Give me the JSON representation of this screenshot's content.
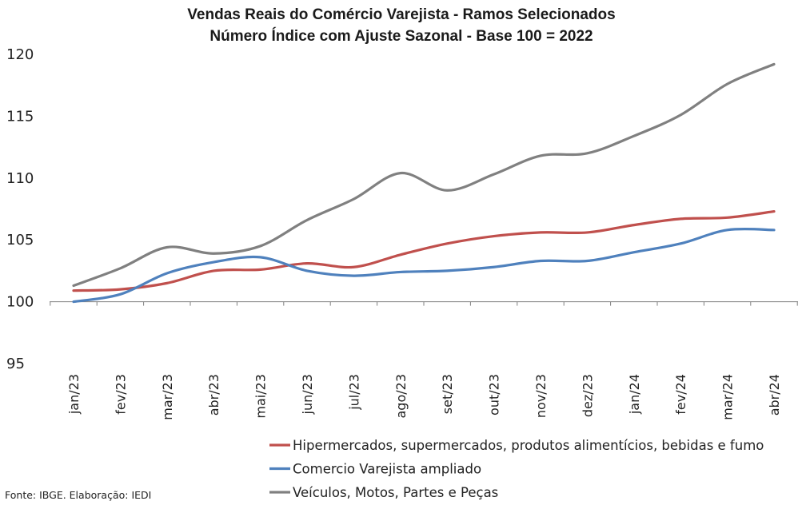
{
  "chart_data": {
    "type": "line",
    "title": "Vendas Reais do Comércio Varejista - Ramos Selecionados",
    "subtitle": "Número Índice com Ajuste Sazonal - Base 100 = 2022",
    "categories": [
      "jan/23",
      "fev/23",
      "mar/23",
      "abr/23",
      "mai/23",
      "jun/23",
      "jul/23",
      "ago/23",
      "set/23",
      "out/23",
      "nov/23",
      "dez/23",
      "jan/24",
      "fev/24",
      "mar/24",
      "abr/24"
    ],
    "yticks": [
      "95",
      "100",
      "105",
      "110",
      "115",
      "120"
    ],
    "ylim": [
      95,
      120
    ],
    "baseline": 100,
    "grid": false,
    "legend_position": "bottom",
    "series": [
      {
        "name": "Hipermercados, supermercados, produtos alimentícios, bebidas e fumo",
        "color": "#c0504d",
        "values": [
          100.9,
          101.0,
          101.5,
          102.5,
          102.6,
          103.1,
          102.8,
          103.8,
          104.7,
          105.3,
          105.6,
          105.6,
          106.2,
          106.7,
          106.8,
          107.3
        ]
      },
      {
        "name": "Comercio Varejista ampliado",
        "color": "#4f81bd",
        "values": [
          100.0,
          100.6,
          102.3,
          103.2,
          103.6,
          102.5,
          102.1,
          102.4,
          102.5,
          102.8,
          103.3,
          103.3,
          104.0,
          104.7,
          105.8,
          105.8
        ]
      },
      {
        "name": "Veículos, Motos, Partes e Peças",
        "color": "#808080",
        "values": [
          101.3,
          102.7,
          104.4,
          103.9,
          104.5,
          106.6,
          108.3,
          110.4,
          109.0,
          110.3,
          111.8,
          112.0,
          113.4,
          115.1,
          117.6,
          119.2
        ]
      }
    ],
    "source": "Fonte: IBGE. Elaboração: IEDI"
  }
}
